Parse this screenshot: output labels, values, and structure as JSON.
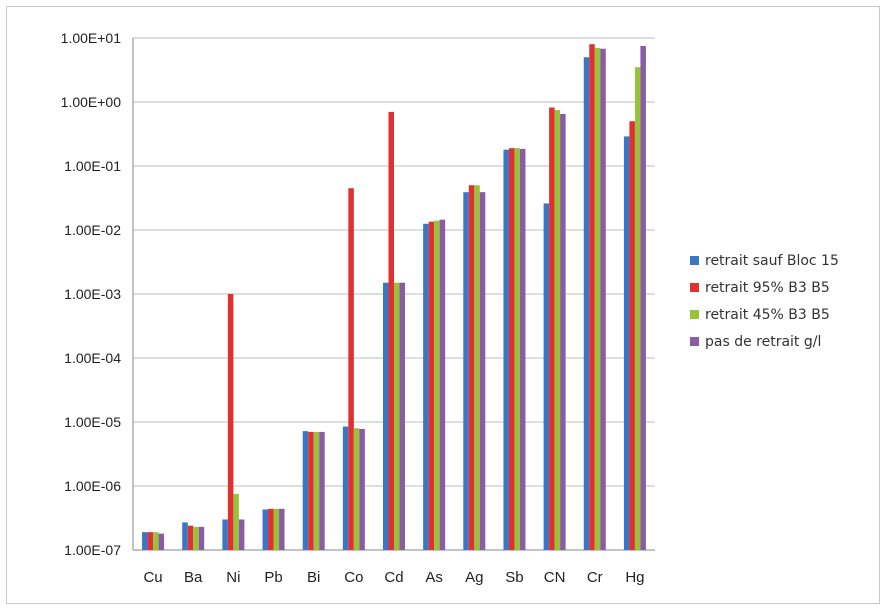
{
  "chart_data": {
    "type": "bar",
    "scale": "log",
    "ylim": [
      1e-07,
      10
    ],
    "yticks": [
      "1.00E-07",
      "1.00E-06",
      "1.00E-05",
      "1.00E-04",
      "1.00E-03",
      "1.00E-02",
      "1.00E-01",
      "1.00E+00",
      "1.00E+01"
    ],
    "grid": "horizontal",
    "legend_position": "right",
    "categories": [
      "Cu",
      "Ba",
      "Ni",
      "Pb",
      "Bi",
      "Co",
      "Cd",
      "As",
      "Ag",
      "Sb",
      "CN",
      "Cr",
      "Hg"
    ],
    "series": [
      {
        "name": "retrait sauf Bloc 15",
        "color": "#3a76c4",
        "values": [
          1.9e-07,
          2.7e-07,
          3e-07,
          4.3e-07,
          7.2e-06,
          8.5e-06,
          0.0015,
          0.0125,
          0.039,
          0.18,
          0.026,
          5.0,
          0.29
        ]
      },
      {
        "name": "retrait 95% B3 B5",
        "color": "#e03030",
        "values": [
          1.9e-07,
          2.4e-07,
          0.001,
          4.4e-07,
          7e-06,
          0.045,
          0.7,
          0.0135,
          0.05,
          0.19,
          0.82,
          8.0,
          0.5
        ]
      },
      {
        "name": "retrait 45% B3 B5",
        "color": "#99c23a",
        "values": [
          1.9e-07,
          2.3e-07,
          7.5e-07,
          4.4e-07,
          7e-06,
          8e-06,
          0.0015,
          0.014,
          0.05,
          0.19,
          0.75,
          7.0,
          3.5
        ]
      },
      {
        "name": "pas de retrait g/l",
        "color": "#8a5ca6",
        "values": [
          1.8e-07,
          2.3e-07,
          3e-07,
          4.4e-07,
          7e-06,
          7.8e-06,
          0.0015,
          0.0145,
          0.039,
          0.185,
          0.65,
          6.8,
          7.5
        ]
      }
    ]
  }
}
